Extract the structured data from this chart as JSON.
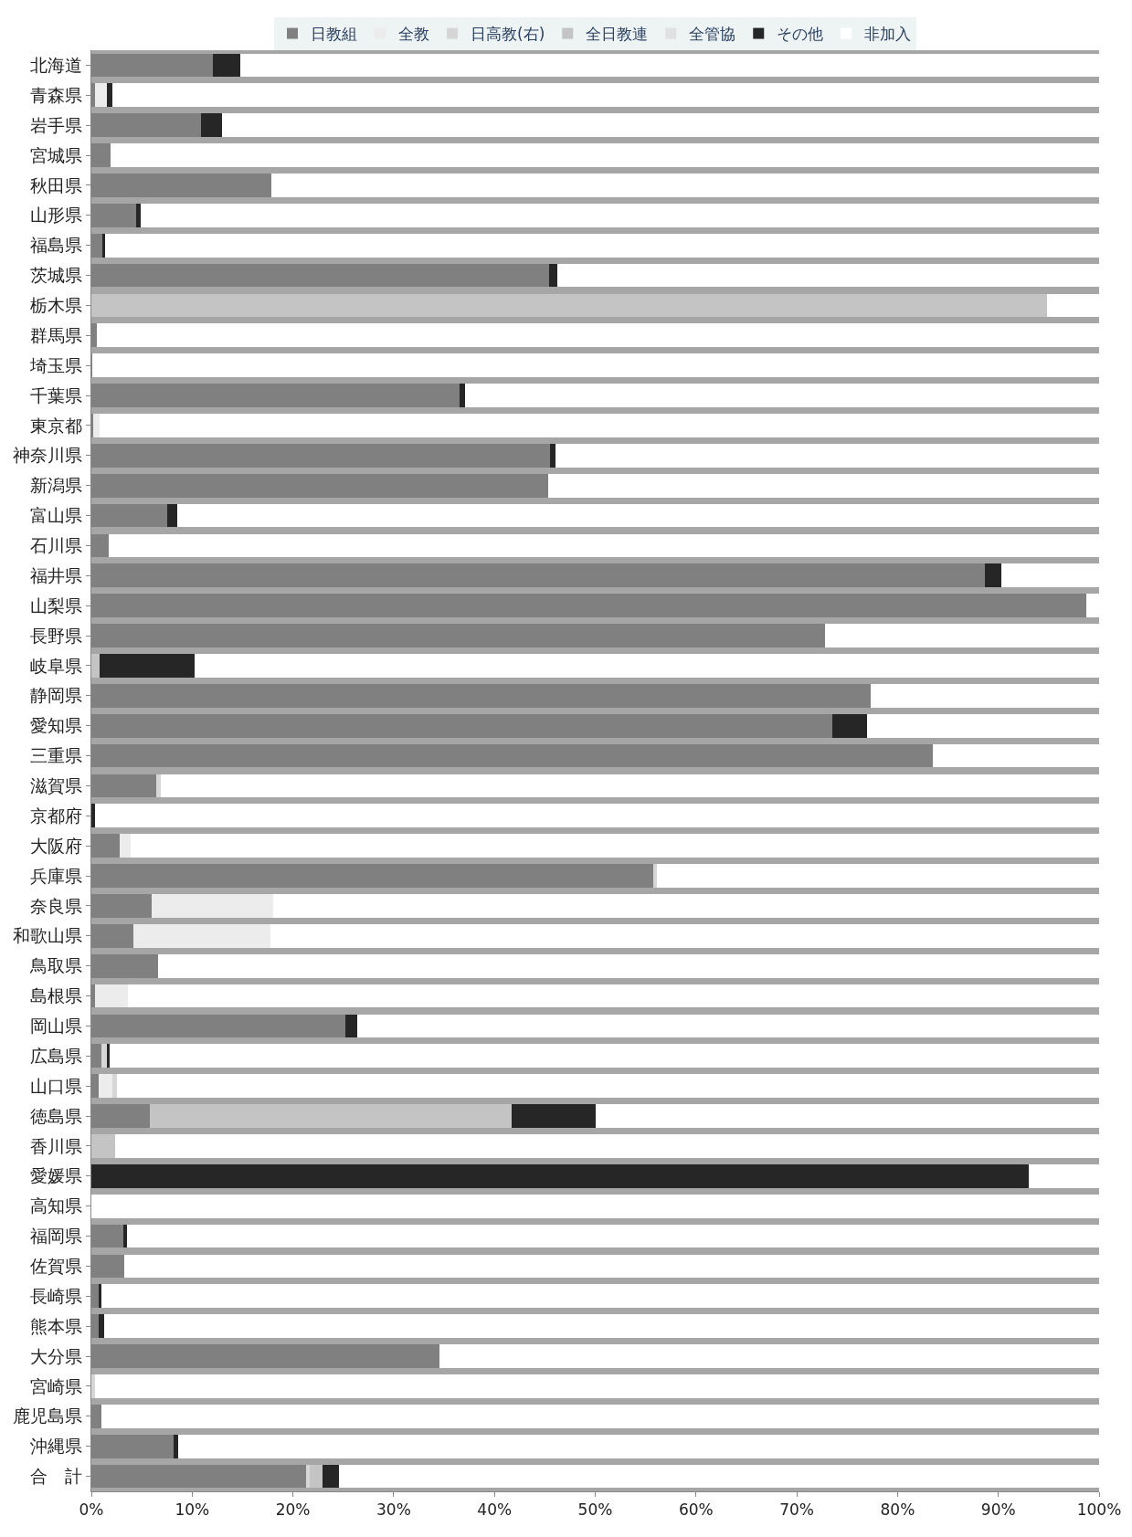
{
  "chart_data": {
    "type": "bar",
    "orientation": "horizontal",
    "stacked": true,
    "legend": "top",
    "grid": false,
    "categories": [
      "北海道",
      "青森県",
      "岩手県",
      "宮城県",
      "秋田県",
      "山形県",
      "福島県",
      "茨城県",
      "栃木県",
      "群馬県",
      "埼玉県",
      "千葉県",
      "東京都",
      "神奈川県",
      "新潟県",
      "富山県",
      "石川県",
      "福井県",
      "山梨県",
      "長野県",
      "岐阜県",
      "静岡県",
      "愛知県",
      "三重県",
      "滋賀県",
      "京都府",
      "大阪府",
      "兵庫県",
      "奈良県",
      "和歌山県",
      "鳥取県",
      "島根県",
      "岡山県",
      "広島県",
      "山口県",
      "徳島県",
      "香川県",
      "愛媛県",
      "高知県",
      "福岡県",
      "佐賀県",
      "長崎県",
      "熊本県",
      "大分県",
      "宮崎県",
      "鹿児島県",
      "沖縄県",
      "合　計"
    ],
    "xlim": [
      0,
      100
    ],
    "xticks": [
      {
        "value": 0,
        "label": "0%"
      },
      {
        "value": 10,
        "label": "10%"
      },
      {
        "value": 20,
        "label": "20%"
      },
      {
        "value": 30,
        "label": "30%"
      },
      {
        "value": 40,
        "label": "40%"
      },
      {
        "value": 50,
        "label": "50%"
      },
      {
        "value": 60,
        "label": "60%"
      },
      {
        "value": 70,
        "label": "70%"
      },
      {
        "value": 80,
        "label": "80%"
      },
      {
        "value": 90,
        "label": "90%"
      },
      {
        "value": 100,
        "label": "100%"
      }
    ],
    "series": [
      {
        "name": "日教組",
        "color": "#808080",
        "values": [
          12.1,
          0.4,
          10.9,
          1.9,
          17.9,
          4.4,
          1.1,
          45.4,
          0,
          0.5,
          0.1,
          36.5,
          0.2,
          45.5,
          45.3,
          7.5,
          1.7,
          88.7,
          98.7,
          72.8,
          0,
          77.3,
          73.5,
          83.5,
          6.4,
          0,
          2.8,
          55.8,
          6.0,
          4.2,
          6.6,
          0.4,
          25.2,
          1.0,
          0.7,
          5.8,
          0,
          0,
          0,
          3.2,
          3.3,
          0.7,
          0.7,
          34.5,
          0,
          1.0,
          8.2,
          21.3
        ]
      },
      {
        "name": "全教",
        "color": "#ececec",
        "values": [
          0,
          1.1,
          0,
          0,
          0,
          0,
          0,
          0,
          0,
          0,
          0,
          0,
          0.6,
          0,
          0,
          0,
          0,
          0,
          0,
          0,
          0,
          0,
          0,
          0,
          0,
          0,
          1.1,
          0,
          12.0,
          13.6,
          0,
          3.2,
          0,
          0,
          1.4,
          0,
          0,
          0,
          0,
          0,
          0,
          0,
          0,
          0,
          0,
          0,
          0,
          0
        ]
      },
      {
        "name": "日高教(右)",
        "color": "#d6d6d6",
        "values": [
          0,
          0,
          0,
          0,
          0,
          0,
          0,
          0,
          0,
          0,
          0,
          0,
          0,
          0,
          0,
          0,
          0,
          0,
          0,
          0,
          0,
          0,
          0,
          0,
          0.5,
          0,
          0,
          0.3,
          0,
          0,
          0,
          0,
          0,
          0.5,
          0.4,
          0,
          0,
          0,
          0,
          0,
          0,
          0,
          0,
          0,
          0.4,
          0,
          0,
          0.4
        ]
      },
      {
        "name": "全日教連",
        "color": "#c4c4c4",
        "values": [
          0,
          0,
          0,
          0,
          0,
          0,
          0,
          0,
          94.8,
          0,
          0,
          0,
          0,
          0,
          0,
          0,
          0,
          0,
          0,
          0,
          0.8,
          0,
          0,
          0,
          0,
          0,
          0,
          0,
          0,
          0,
          0,
          0,
          0,
          0,
          0,
          35.9,
          2.4,
          0,
          0,
          0,
          0,
          0,
          0,
          0,
          0,
          0,
          0,
          1.2
        ]
      },
      {
        "name": "全管協",
        "color": "#e0e0e0",
        "values": [
          0,
          0,
          0,
          0,
          0,
          0,
          0,
          0,
          0,
          0,
          0,
          0,
          0,
          0,
          0,
          0,
          0,
          0,
          0,
          0,
          0,
          0,
          0,
          0,
          0,
          0,
          0,
          0,
          0,
          0,
          0,
          0,
          0,
          0,
          0,
          0,
          0,
          0,
          0,
          0,
          0,
          0,
          0,
          0,
          0,
          0,
          0,
          0
        ]
      },
      {
        "name": "その他",
        "color": "#262626",
        "values": [
          2.7,
          0.6,
          2.1,
          0,
          0,
          0.5,
          0.3,
          0.8,
          0,
          0,
          0,
          0.6,
          0,
          0.6,
          0,
          1.0,
          0,
          1.6,
          0,
          0,
          9.4,
          0,
          3.5,
          0,
          0,
          0.4,
          0,
          0,
          0,
          0,
          0,
          0,
          1.2,
          0.3,
          0,
          8.3,
          0,
          93.0,
          0,
          0.3,
          0,
          0.3,
          0.6,
          0,
          0,
          0,
          0.4,
          1.7
        ]
      },
      {
        "name": "非加入",
        "color": "#ffffff",
        "values": [
          85.2,
          97.9,
          87.0,
          98.1,
          82.1,
          95.1,
          98.6,
          53.8,
          5.2,
          99.5,
          99.9,
          62.9,
          99.2,
          53.9,
          54.7,
          91.5,
          98.3,
          9.7,
          1.3,
          27.2,
          89.8,
          22.7,
          23.0,
          16.5,
          93.1,
          99.6,
          96.1,
          43.9,
          82.0,
          82.2,
          93.4,
          96.4,
          73.6,
          98.2,
          97.5,
          50.0,
          97.6,
          7.0,
          100,
          96.5,
          96.7,
          99.0,
          98.7,
          65.5,
          99.6,
          99.0,
          91.4,
          75.4
        ]
      }
    ]
  }
}
